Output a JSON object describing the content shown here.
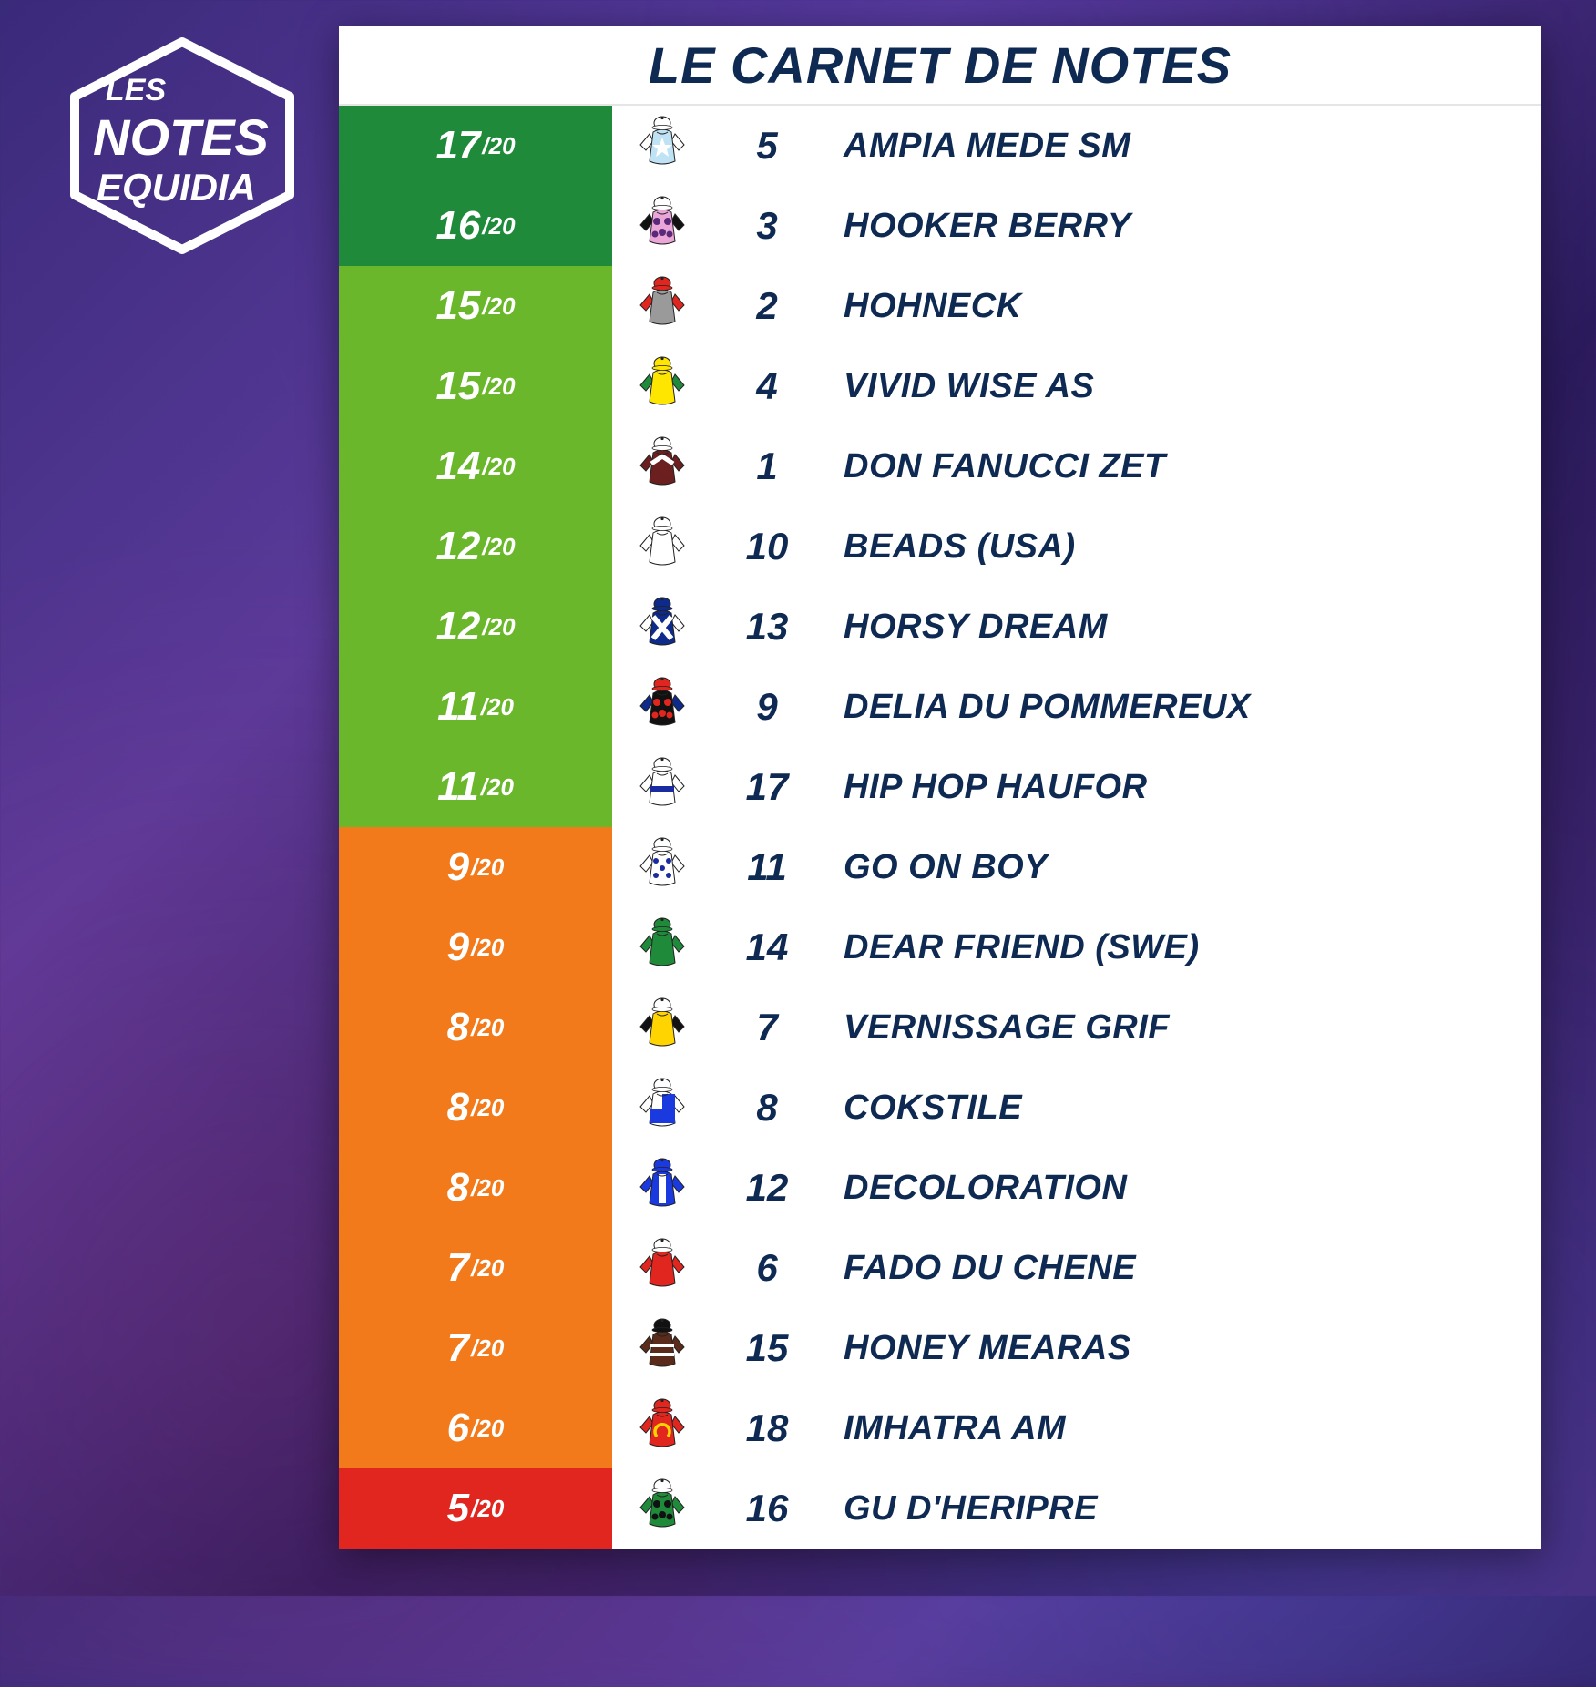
{
  "logo": {
    "line1": "LES",
    "line2": "NOTES",
    "line3": "EQUIDIA"
  },
  "header": {
    "title": "LE CARNET DE NOTES"
  },
  "colors": {
    "text_primary": "#0e2a52",
    "score_bg_dark_green": "#1e8a3a",
    "score_bg_green": "#6ab72c",
    "score_bg_orange": "#f27a1a",
    "score_bg_red": "#e0261f",
    "white": "#ffffff"
  },
  "max_score": "/20",
  "rows": [
    {
      "score": "17",
      "bg": "#1e8a3a",
      "number": "5",
      "name": "AMPIA MEDE SM",
      "silk": {
        "body": "#bfe2f5",
        "sleeves": "#ffffff",
        "cap": "#ffffff",
        "pattern": "star",
        "accent": "#ffffff"
      }
    },
    {
      "score": "16",
      "bg": "#1e8a3a",
      "number": "3",
      "name": "HOOKER BERRY",
      "silk": {
        "body": "#e9a6d6",
        "sleeves": "#111111",
        "cap": "#ffffff",
        "pattern": "spots",
        "accent": "#5a2a7a"
      }
    },
    {
      "score": "15",
      "bg": "#6ab72c",
      "number": "2",
      "name": "HOHNECK",
      "silk": {
        "body": "#9a9a9a",
        "sleeves": "#e0261f",
        "cap": "#e0261f",
        "pattern": "plain",
        "accent": "#e0261f"
      }
    },
    {
      "score": "15",
      "bg": "#6ab72c",
      "number": "4",
      "name": "VIVID WISE AS",
      "silk": {
        "body": "#ffe600",
        "sleeves": "#1e8a3a",
        "cap": "#ffe600",
        "pattern": "plain",
        "accent": "#1e8a3a"
      }
    },
    {
      "score": "14",
      "bg": "#6ab72c",
      "number": "1",
      "name": "DON FANUCCI ZET",
      "silk": {
        "body": "#6b1f1f",
        "sleeves": "#6b1f1f",
        "cap": "#ffffff",
        "pattern": "chevron",
        "accent": "#ffffff"
      }
    },
    {
      "score": "12",
      "bg": "#6ab72c",
      "number": "10",
      "name": "BEADS (USA)",
      "silk": {
        "body": "#ffffff",
        "sleeves": "#ffffff",
        "cap": "#ffffff",
        "pattern": "plain",
        "accent": "#cccccc"
      }
    },
    {
      "score": "12",
      "bg": "#6ab72c",
      "number": "13",
      "name": "HORSY DREAM",
      "silk": {
        "body": "#0e2a8a",
        "sleeves": "#ffffff",
        "cap": "#0e2a8a",
        "pattern": "cross",
        "accent": "#ffffff"
      }
    },
    {
      "score": "11",
      "bg": "#6ab72c",
      "number": "9",
      "name": "DELIA DU POMMEREUX",
      "silk": {
        "body": "#111111",
        "sleeves": "#0e2a8a",
        "cap": "#e0261f",
        "pattern": "spots",
        "accent": "#e0261f"
      }
    },
    {
      "score": "11",
      "bg": "#6ab72c",
      "number": "17",
      "name": "HIP HOP HAUFOR",
      "silk": {
        "body": "#ffffff",
        "sleeves": "#ffffff",
        "cap": "#ffffff",
        "pattern": "hoop",
        "accent": "#1a2aa0"
      }
    },
    {
      "score": "9",
      "bg": "#f27a1a",
      "number": "11",
      "name": "GO ON BOY",
      "silk": {
        "body": "#ffffff",
        "sleeves": "#ffffff",
        "cap": "#ffffff",
        "pattern": "stars",
        "accent": "#1a2aa0"
      }
    },
    {
      "score": "9",
      "bg": "#f27a1a",
      "number": "14",
      "name": "DEAR FRIEND (SWE)",
      "silk": {
        "body": "#1e8a3a",
        "sleeves": "#1e8a3a",
        "cap": "#1e8a3a",
        "pattern": "plain",
        "accent": "#ffffff"
      }
    },
    {
      "score": "8",
      "bg": "#f27a1a",
      "number": "7",
      "name": "VERNISSAGE GRIF",
      "silk": {
        "body": "#ffd400",
        "sleeves": "#111111",
        "cap": "#ffffff",
        "pattern": "plain",
        "accent": "#111111"
      }
    },
    {
      "score": "8",
      "bg": "#f27a1a",
      "number": "8",
      "name": "COKSTILE",
      "silk": {
        "body": "#ffffff",
        "sleeves": "#ffffff",
        "cap": "#ffffff",
        "pattern": "quarter",
        "accent": "#1a3ae0"
      }
    },
    {
      "score": "8",
      "bg": "#f27a1a",
      "number": "12",
      "name": "DECOLORATION",
      "silk": {
        "body": "#1a3ae0",
        "sleeves": "#1a3ae0",
        "cap": "#1a3ae0",
        "pattern": "panel",
        "accent": "#ffffff"
      }
    },
    {
      "score": "7",
      "bg": "#f27a1a",
      "number": "6",
      "name": "FADO DU CHENE",
      "silk": {
        "body": "#e0261f",
        "sleeves": "#e0261f",
        "cap": "#ffffff",
        "pattern": "plain",
        "accent": "#ffffff"
      }
    },
    {
      "score": "7",
      "bg": "#f27a1a",
      "number": "15",
      "name": "HONEY MEARAS",
      "silk": {
        "body": "#5a2a1a",
        "sleeves": "#5a2a1a",
        "cap": "#111111",
        "pattern": "stripe",
        "accent": "#ffffff"
      }
    },
    {
      "score": "6",
      "bg": "#f27a1a",
      "number": "18",
      "name": "IMHATRA AM",
      "silk": {
        "body": "#e0261f",
        "sleeves": "#e0261f",
        "cap": "#e0261f",
        "pattern": "horseshoe",
        "accent": "#ffd400"
      }
    },
    {
      "score": "5",
      "bg": "#e0261f",
      "number": "16",
      "name": "GU D'HERIPRE",
      "silk": {
        "body": "#1e8a3a",
        "sleeves": "#1e8a3a",
        "cap": "#ffffff",
        "pattern": "spots",
        "accent": "#111111"
      }
    }
  ]
}
